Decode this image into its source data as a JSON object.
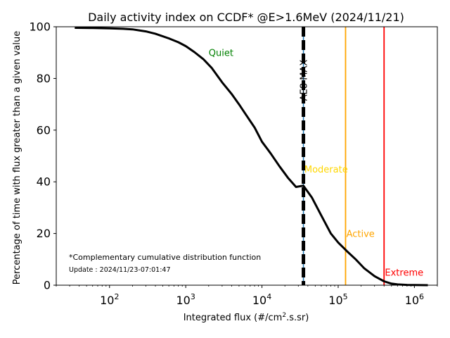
{
  "chart_data": {
    "type": "line",
    "title": "Daily activity index on CCDF* @E>1.6MeV (2024/11/21)",
    "xlabel_prefix": "Integrated flux (#/cm",
    "xlabel_sup": "2",
    "xlabel_suffix": ".s.sr)",
    "ylabel": "Percentage of time with flux greater than a given value",
    "xscale": "log",
    "xlim": [
      20,
      2000000
    ],
    "ylim": [
      0,
      100
    ],
    "x_ticks": [
      {
        "value": 100,
        "base": "10",
        "exp": "2"
      },
      {
        "value": 1000,
        "base": "10",
        "exp": "3"
      },
      {
        "value": 10000,
        "base": "10",
        "exp": "4"
      },
      {
        "value": 100000,
        "base": "10",
        "exp": "5"
      },
      {
        "value": 1000000,
        "base": "10",
        "exp": "6"
      }
    ],
    "y_ticks": [
      {
        "value": 0,
        "label": "0"
      },
      {
        "value": 20,
        "label": "20"
      },
      {
        "value": 40,
        "label": "40"
      },
      {
        "value": 60,
        "label": "60"
      },
      {
        "value": 80,
        "label": "80"
      },
      {
        "value": 100,
        "label": "100"
      }
    ],
    "grid": false,
    "series": [
      {
        "color": "#000000",
        "x": [
          35,
          60,
          100,
          150,
          200,
          300,
          400,
          600,
          800,
          1000,
          1300,
          1700,
          2200,
          3000,
          4000,
          5000,
          6000,
          8000,
          10000,
          13000,
          17000,
          22000,
          28000,
          35000,
          45000,
          60000,
          80000,
          100000,
          130000,
          170000,
          220000,
          300000,
          400000,
          500000,
          600000,
          800000,
          1000000,
          1500000
        ],
        "y": [
          99.6,
          99.5,
          99.4,
          99.2,
          99.0,
          98.2,
          97.3,
          95.5,
          94.0,
          92.5,
          90.2,
          87.5,
          84.0,
          78.5,
          74.0,
          70.0,
          66.5,
          61.0,
          55.5,
          51.0,
          46.0,
          41.5,
          38.0,
          38.5,
          34.0,
          27.0,
          20.0,
          16.5,
          13.2,
          10.0,
          6.5,
          3.5,
          1.5,
          0.6,
          0.3,
          0.1,
          0.05,
          0.0
        ]
      }
    ],
    "vlines": [
      {
        "label": "AE8 MAX",
        "x": 35000,
        "color": "#000000",
        "style": "dashed",
        "accent": "#1f77b4"
      },
      {
        "label": "Active",
        "x": 125000,
        "color": "#ffa500"
      },
      {
        "label": "Extreme",
        "x": 400000,
        "color": "#ff0000"
      }
    ],
    "annotations": [
      {
        "text": "Quiet",
        "x": 2000,
        "y": 90,
        "color": "#008000"
      },
      {
        "text": "Moderate",
        "x": 36000,
        "y": 45,
        "color": "#ffd700"
      },
      {
        "text": "Active",
        "x": 128000,
        "y": 20,
        "color": "#ffa500"
      },
      {
        "text": "Extreme",
        "x": 410000,
        "y": 5,
        "color": "#ff0000"
      }
    ],
    "footnote": "*Complementary cumulative distribution function",
    "update_text": "Update : 2024/11/23-07:01:47"
  }
}
